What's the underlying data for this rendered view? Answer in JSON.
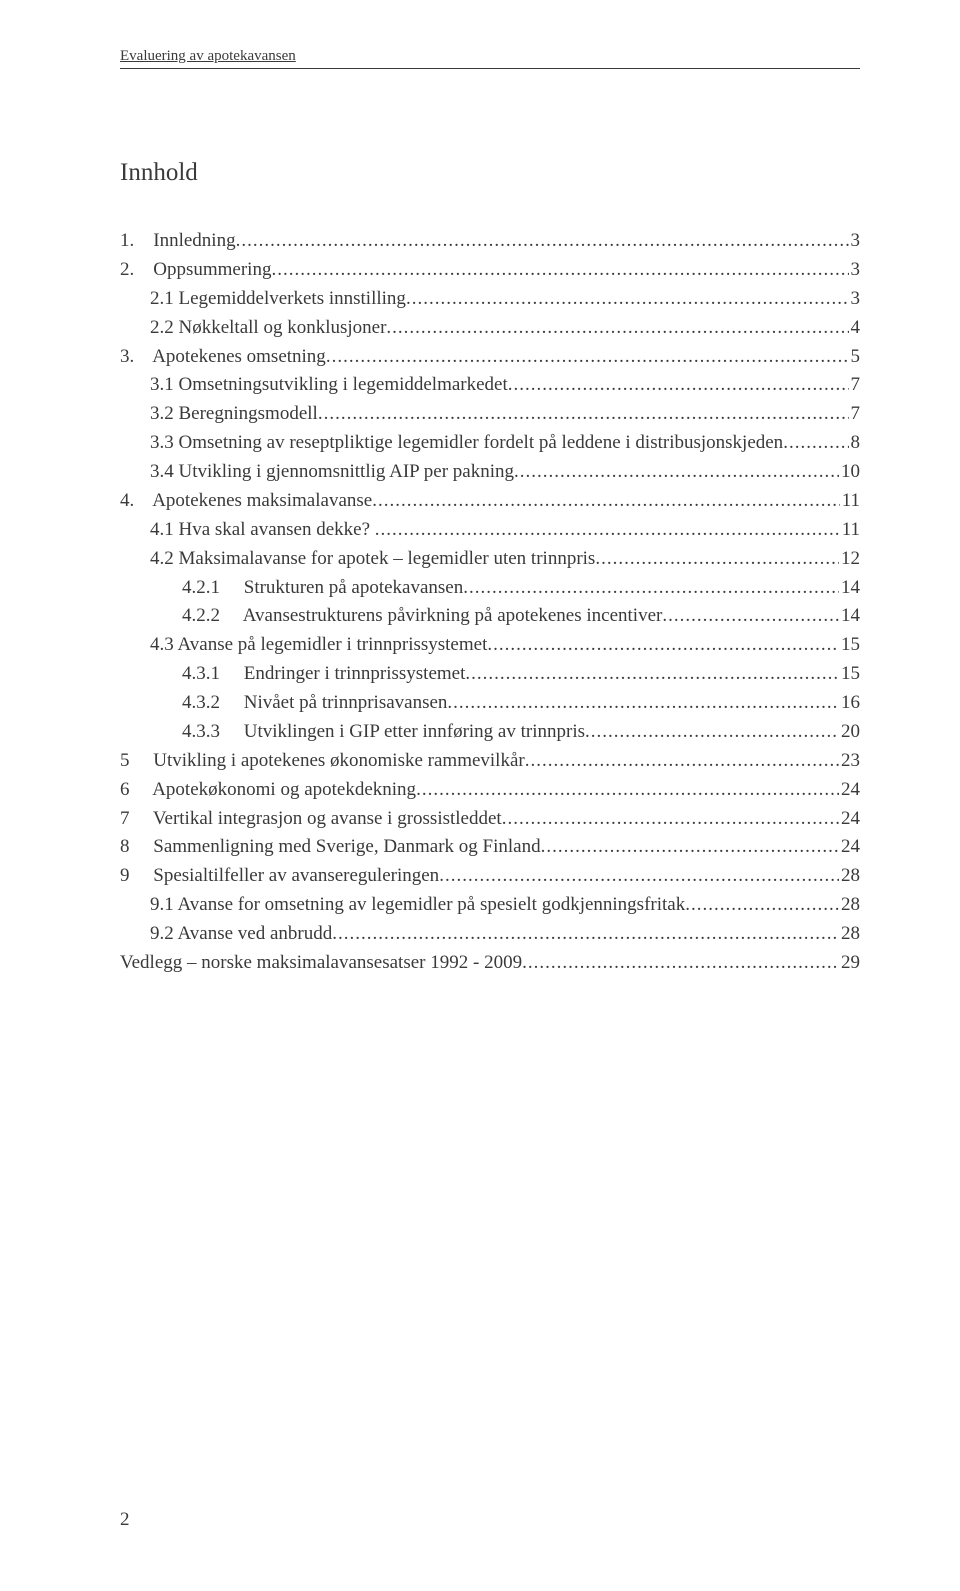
{
  "header": {
    "title": "Evaluering av apotekavansen"
  },
  "sectionTitle": "Innhold",
  "toc": [
    {
      "indent": 0,
      "label": "1.    Innledning",
      "page": "3"
    },
    {
      "indent": 0,
      "label": "2.    Oppsummering",
      "page": "3"
    },
    {
      "indent": 1,
      "label": "2.1 Legemiddelverkets innstilling",
      "page": "3"
    },
    {
      "indent": 1,
      "label": "2.2 Nøkkeltall og konklusjoner",
      "page": "4"
    },
    {
      "indent": 0,
      "label": "3.    Apotekenes omsetning",
      "page": "5"
    },
    {
      "indent": 1,
      "label": "3.1 Omsetningsutvikling i legemiddelmarkedet",
      "page": "7"
    },
    {
      "indent": 1,
      "label": "3.2 Beregningsmodell",
      "page": "7"
    },
    {
      "indent": 1,
      "label": "3.3 Omsetning av reseptpliktige legemidler fordelt på leddene i distribusjonskjeden",
      "page": "8"
    },
    {
      "indent": 1,
      "label": "3.4 Utvikling i gjennomsnittlig AIP per pakning",
      "page": "10"
    },
    {
      "indent": 0,
      "label": "4.    Apotekenes maksimalavanse",
      "page": "11"
    },
    {
      "indent": 1,
      "label": "4.1 Hva skal avansen dekke? ",
      "page": "11"
    },
    {
      "indent": 1,
      "label": "4.2 Maksimalavanse for apotek – legemidler uten trinnpris",
      "page": "12"
    },
    {
      "indent": 2,
      "label": "4.2.1     Strukturen på apotekavansen",
      "page": "14"
    },
    {
      "indent": 2,
      "label": "4.2.2     Avansestrukturens påvirkning på apotekenes incentiver",
      "page": "14"
    },
    {
      "indent": 1,
      "label": "4.3 Avanse på legemidler i trinnprissystemet",
      "page": "15"
    },
    {
      "indent": 2,
      "label": "4.3.1     Endringer i trinnprissystemet",
      "page": "15"
    },
    {
      "indent": 2,
      "label": "4.3.2     Nivået på trinnprisavansen",
      "page": "16"
    },
    {
      "indent": 2,
      "label": "4.3.3     Utviklingen i GIP etter innføring av trinnpris",
      "page": "20"
    },
    {
      "indent": 0,
      "label": "5     Utvikling i apotekenes økonomiske rammevilkår",
      "page": "23"
    },
    {
      "indent": 0,
      "label": "6     Apotekøkonomi og apotekdekning",
      "page": "24"
    },
    {
      "indent": 0,
      "label": "7     Vertikal integrasjon og avanse i grossistleddet",
      "page": "24"
    },
    {
      "indent": 0,
      "label": "8     Sammenligning med Sverige, Danmark og Finland",
      "page": "24"
    },
    {
      "indent": 0,
      "label": "9     Spesialtilfeller av avansereguleringen",
      "page": "28"
    },
    {
      "indent": 1,
      "label": "9.1 Avanse for omsetning av legemidler på spesielt godkjenningsfritak",
      "page": "28"
    },
    {
      "indent": 1,
      "label": "9.2 Avanse ved anbrudd",
      "page": "28"
    },
    {
      "indent": 0,
      "label": "Vedlegg – norske maksimalavansesatser 1992 - 2009",
      "page": "29"
    }
  ],
  "pageNumber": "2",
  "style": {
    "background": "#ffffff",
    "textColor": "#3a3a3a",
    "fontFamily": "Times New Roman",
    "headerFontSize": 15,
    "titleFontSize": 25,
    "tocFontSize": 19,
    "pageWidth": 960,
    "pageHeight": 1591,
    "indentStep": 30
  }
}
